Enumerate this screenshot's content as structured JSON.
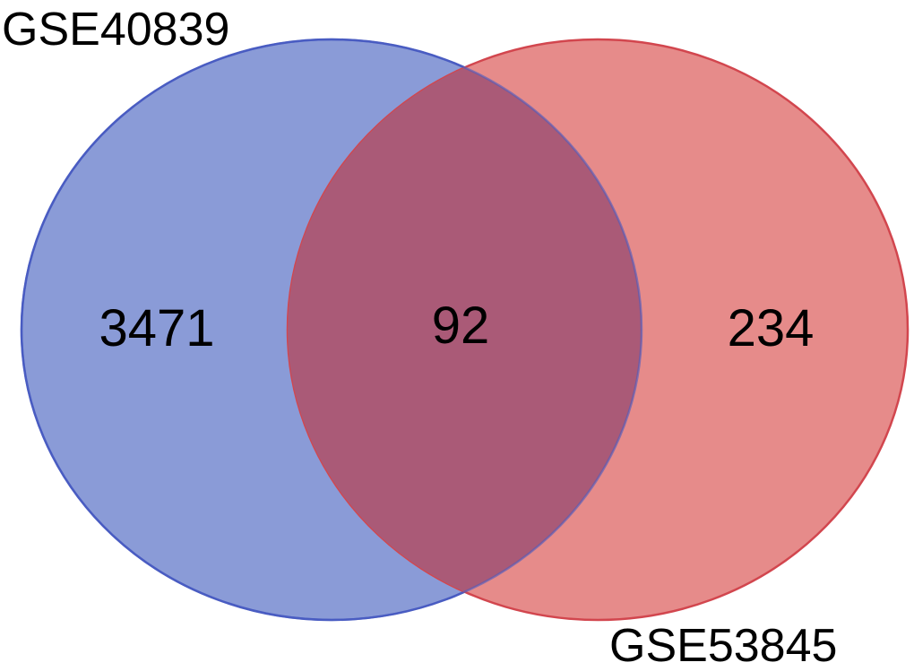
{
  "sets": [
    {
      "name": "GSE40839",
      "only_count": "3471",
      "fill": "#8a9bd7",
      "stroke": "#4a5cc2"
    },
    {
      "name": "GSE53845",
      "only_count": "234",
      "fill": "#e68b8a",
      "stroke": "#d2464e"
    }
  ],
  "intersection": {
    "count": "92",
    "fill": "#aa5a77"
  }
}
